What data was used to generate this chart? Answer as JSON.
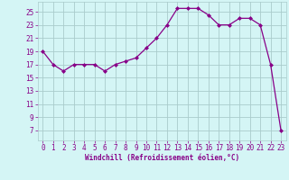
{
  "x": [
    0,
    1,
    2,
    3,
    4,
    5,
    6,
    7,
    8,
    9,
    10,
    11,
    12,
    13,
    14,
    15,
    16,
    17,
    18,
    19,
    20,
    21,
    22,
    23
  ],
  "y": [
    19,
    17,
    16,
    17,
    17,
    17,
    16,
    17,
    17.5,
    18,
    19.5,
    21,
    23,
    25.5,
    25.5,
    25.5,
    24.5,
    23,
    23,
    24,
    24,
    23,
    17,
    7
  ],
  "line_color": "#880088",
  "marker": "D",
  "marker_size": 2.0,
  "bg_color": "#d4f5f5",
  "grid_color": "#aacccc",
  "xlabel": "Windchill (Refroidissement éolien,°C)",
  "xlabel_color": "#880088",
  "yticks": [
    7,
    9,
    11,
    13,
    15,
    17,
    19,
    21,
    23,
    25
  ],
  "xticks": [
    0,
    1,
    2,
    3,
    4,
    5,
    6,
    7,
    8,
    9,
    10,
    11,
    12,
    13,
    14,
    15,
    16,
    17,
    18,
    19,
    20,
    21,
    22,
    23
  ],
  "ylim": [
    5.5,
    26.5
  ],
  "xlim": [
    -0.5,
    23.5
  ],
  "tick_color": "#880088",
  "label_fontsize": 5.5,
  "tick_fontsize": 5.5
}
